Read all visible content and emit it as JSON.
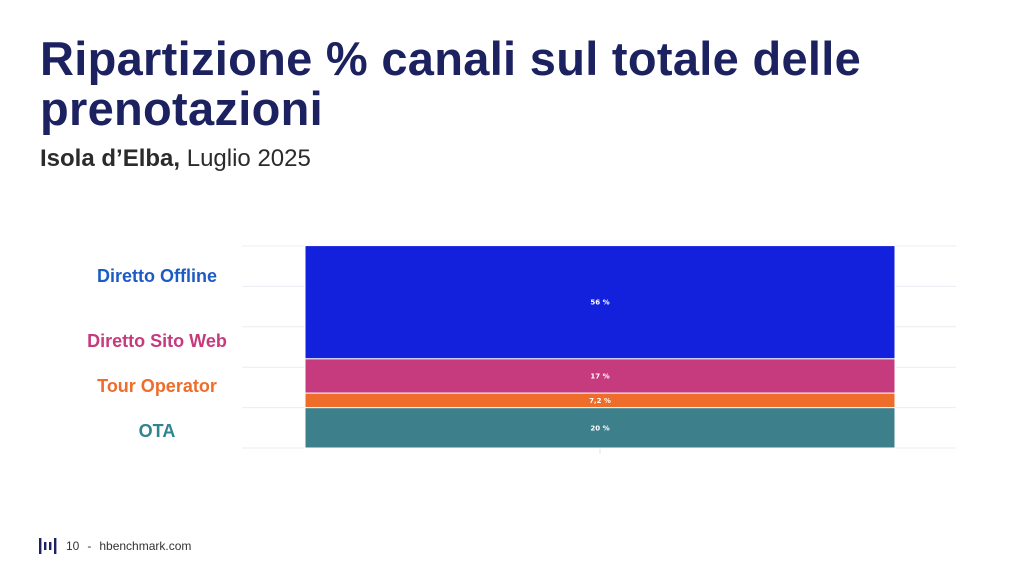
{
  "slide": {
    "title": "Ripartizione % canali sul totale delle prenotazioni",
    "subtitle_bold": "Isola d’Elba,",
    "subtitle_rest": "Luglio 2025"
  },
  "footer": {
    "page_number": "10",
    "separator": "-",
    "site": "hbenchmark.com"
  },
  "colors": {
    "title": "#1c2160",
    "diretto_offline": "#1320dc",
    "diretto_sito_web": "#c63a7e",
    "tour_operator": "#ee6d2a",
    "ota": "#3e7f8c"
  },
  "chart_data": {
    "type": "bar",
    "stacked": true,
    "orientation": "vertical",
    "ylim": [
      0,
      100
    ],
    "grid": true,
    "series": [
      {
        "name": "OTA",
        "value": 20,
        "label": "20 %",
        "color": "#3e7f8c"
      },
      {
        "name": "Tour Operator",
        "value": 7.2,
        "label": "7,2 %",
        "color": "#ee6d2a"
      },
      {
        "name": "Diretto Sito Web",
        "value": 17,
        "label": "17 %",
        "color": "#c63a7e"
      },
      {
        "name": "Diretto Offline",
        "value": 56,
        "label": "56 %",
        "color": "#1320dc"
      }
    ],
    "legend": {
      "placement": "left",
      "items": [
        {
          "name": "Diretto Offline",
          "color": "#1d5bc4"
        },
        {
          "name": "Diretto Sito Web",
          "color": "#c63a7e"
        },
        {
          "name": "Tour Operator",
          "color": "#ee6d2a"
        },
        {
          "name": "OTA",
          "color": "#2e8490"
        }
      ]
    }
  }
}
